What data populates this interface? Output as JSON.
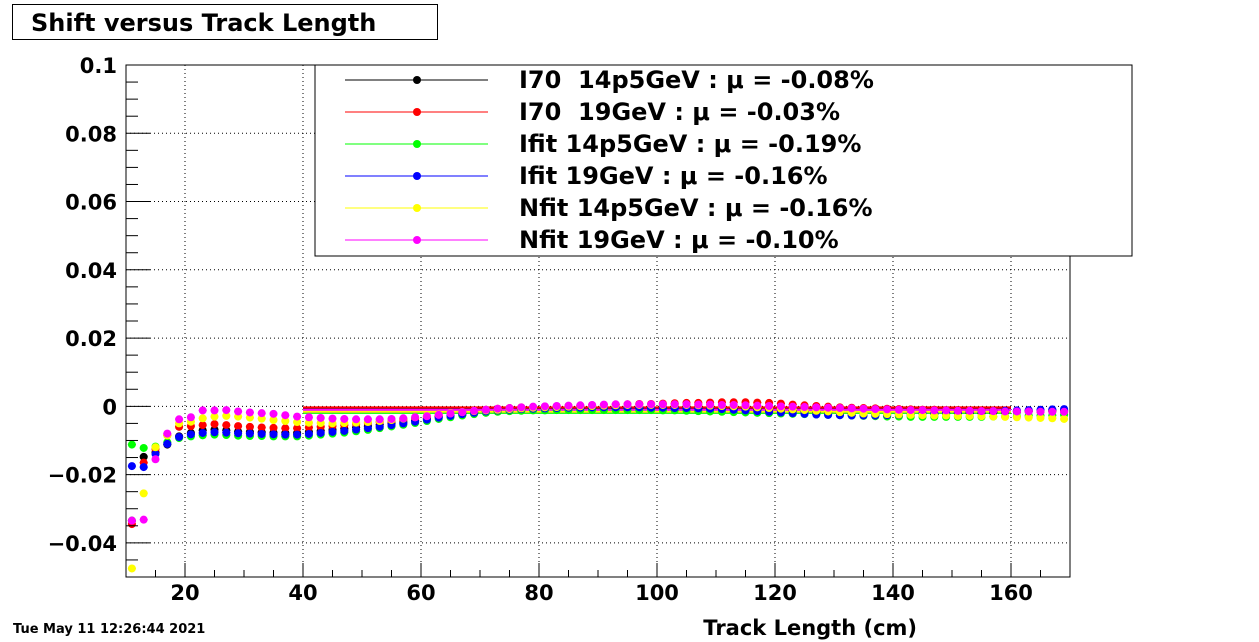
{
  "title": "Shift versus Track Length",
  "timestamp": "Tue May 11 12:26:44 2021",
  "chart_data": {
    "type": "scatter",
    "xlabel": "Track Length (cm)",
    "ylabel": "",
    "xlim": [
      10,
      170
    ],
    "ylim": [
      -0.05,
      0.1
    ],
    "grid": true,
    "legend_position": "top-right",
    "x_ticks": [
      "20",
      "40",
      "60",
      "80",
      "100",
      "120",
      "140",
      "160"
    ],
    "y_ticks": [
      "0.1",
      "0.08",
      "0.06",
      "0.04",
      "0.02",
      "0",
      "−0.02",
      "−0.04"
    ],
    "x": [
      11,
      13,
      15,
      17,
      19,
      21,
      23,
      25,
      27,
      29,
      31,
      33,
      35,
      37,
      39,
      41,
      43,
      45,
      47,
      49,
      51,
      53,
      55,
      57,
      59,
      61,
      63,
      65,
      67,
      69,
      71,
      73,
      75,
      77,
      79,
      81,
      83,
      85,
      87,
      89,
      91,
      93,
      95,
      97,
      99,
      101,
      103,
      105,
      107,
      109,
      111,
      113,
      115,
      117,
      119,
      121,
      123,
      125,
      127,
      129,
      131,
      133,
      135,
      137,
      139,
      141,
      143,
      145,
      147,
      149,
      151,
      153,
      155,
      157,
      159,
      161,
      163,
      165,
      167,
      169
    ],
    "series": [
      {
        "name": "I70  14p5GeV : μ = -0.08%",
        "color": "#000000",
        "mean_line": -0.0008,
        "values": [
          -0.0335,
          -0.0148,
          -0.0135,
          -0.0112,
          -0.0088,
          -0.0078,
          -0.007,
          -0.0068,
          -0.007,
          -0.0074,
          -0.0075,
          -0.0076,
          -0.0077,
          -0.0078,
          -0.0078,
          -0.0075,
          -0.0072,
          -0.0069,
          -0.0066,
          -0.0062,
          -0.0058,
          -0.0054,
          -0.005,
          -0.0046,
          -0.0042,
          -0.0036,
          -0.003,
          -0.0026,
          -0.0022,
          -0.0018,
          -0.0015,
          -0.0012,
          -0.001,
          -0.0009,
          -0.0008,
          -0.0007,
          -0.0006,
          -0.0006,
          -0.0005,
          -0.0005,
          -0.0005,
          -0.0005,
          -0.0005,
          -0.0005,
          -0.0005,
          -0.0005,
          -0.0005,
          -0.0005,
          -0.0006,
          -0.0006,
          -0.0006,
          -0.0007,
          -0.0008,
          -0.0009,
          -0.001,
          -0.0011,
          -0.0013,
          -0.0015,
          -0.0017,
          -0.0019,
          -0.0021,
          -0.0022,
          -0.0023,
          -0.0024,
          -0.0025,
          -0.0025,
          -0.0025,
          -0.0024,
          -0.0023,
          -0.0022,
          -0.0021,
          -0.002,
          -0.0019,
          -0.0018,
          -0.0017,
          -0.0016,
          -0.0015,
          -0.0014,
          -0.0013,
          -0.0012
        ]
      },
      {
        "name": "I70  19GeV : μ = -0.03%",
        "color": "#ff0000",
        "mean_line": -0.0003,
        "values": [
          -0.0345,
          -0.0165,
          -0.0125,
          -0.0085,
          -0.006,
          -0.0058,
          -0.0055,
          -0.0052,
          -0.0055,
          -0.0058,
          -0.006,
          -0.0062,
          -0.0063,
          -0.0064,
          -0.0064,
          -0.0062,
          -0.006,
          -0.0058,
          -0.0055,
          -0.0052,
          -0.0049,
          -0.0046,
          -0.0043,
          -0.004,
          -0.0036,
          -0.0032,
          -0.0027,
          -0.0022,
          -0.0018,
          -0.0014,
          -0.001,
          -0.0007,
          -0.0005,
          -0.0003,
          -0.0002,
          -0.0001,
          0.0,
          0.0001,
          0.0002,
          0.0003,
          0.0004,
          0.0005,
          0.0006,
          0.0007,
          0.0007,
          0.0008,
          0.0009,
          0.001,
          0.001,
          0.0011,
          0.0012,
          0.0012,
          0.0012,
          0.0011,
          0.001,
          0.0008,
          0.0005,
          0.0003,
          0.0001,
          -0.0001,
          -0.0003,
          -0.0004,
          -0.0005,
          -0.0006,
          -0.0007,
          -0.0008,
          -0.0009,
          -0.001,
          -0.001,
          -0.0011,
          -0.0011,
          -0.0012,
          -0.0012,
          -0.0013,
          -0.0013,
          -0.0014,
          -0.0014,
          -0.0015,
          -0.0015,
          -0.0016
        ]
      },
      {
        "name": "Ifit 14p5GeV : μ = -0.19%",
        "color": "#00ff00",
        "mean_line": -0.0019,
        "values": [
          -0.0112,
          -0.0122,
          -0.0118,
          -0.0105,
          -0.0093,
          -0.0088,
          -0.0085,
          -0.0083,
          -0.0084,
          -0.0086,
          -0.0087,
          -0.0087,
          -0.0088,
          -0.0088,
          -0.0088,
          -0.0086,
          -0.0083,
          -0.008,
          -0.0077,
          -0.0073,
          -0.0069,
          -0.0064,
          -0.0059,
          -0.0054,
          -0.0049,
          -0.0043,
          -0.0037,
          -0.0032,
          -0.0027,
          -0.0023,
          -0.0019,
          -0.0016,
          -0.0014,
          -0.0013,
          -0.0012,
          -0.0012,
          -0.0011,
          -0.0011,
          -0.0011,
          -0.0011,
          -0.0011,
          -0.0011,
          -0.0011,
          -0.0011,
          -0.0011,
          -0.0012,
          -0.0012,
          -0.0013,
          -0.0014,
          -0.0015,
          -0.0016,
          -0.0017,
          -0.0018,
          -0.0019,
          -0.002,
          -0.0021,
          -0.0022,
          -0.0023,
          -0.0024,
          -0.0025,
          -0.0026,
          -0.0027,
          -0.0028,
          -0.0029,
          -0.003,
          -0.003,
          -0.0031,
          -0.0031,
          -0.0031,
          -0.0031,
          -0.0031,
          -0.0031,
          -0.0031,
          -0.003,
          -0.003,
          -0.0029,
          -0.0028,
          -0.0027,
          -0.0026,
          -0.0025
        ]
      },
      {
        "name": "Ifit 19GeV : μ = -0.16%",
        "color": "#0000ff",
        "mean_line": -0.0016,
        "values": [
          -0.0175,
          -0.0178,
          -0.014,
          -0.011,
          -0.009,
          -0.0082,
          -0.0078,
          -0.0076,
          -0.0077,
          -0.0079,
          -0.008,
          -0.0081,
          -0.0082,
          -0.0083,
          -0.0083,
          -0.0081,
          -0.0078,
          -0.0075,
          -0.0072,
          -0.0068,
          -0.0064,
          -0.006,
          -0.0055,
          -0.005,
          -0.0045,
          -0.0039,
          -0.0033,
          -0.0028,
          -0.0023,
          -0.0019,
          -0.0015,
          -0.0012,
          -0.001,
          -0.0008,
          -0.0007,
          -0.0006,
          -0.0005,
          -0.0004,
          -0.0004,
          -0.0003,
          -0.0003,
          -0.0003,
          -0.0003,
          -0.0003,
          -0.0004,
          -0.0004,
          -0.0005,
          -0.0005,
          -0.0006,
          -0.0007,
          -0.0008,
          -0.001,
          -0.0012,
          -0.0014,
          -0.0016,
          -0.0018,
          -0.002,
          -0.0022,
          -0.0024,
          -0.0025,
          -0.0026,
          -0.0027,
          -0.0027,
          -0.0027,
          -0.0026,
          -0.0025,
          -0.0024,
          -0.0022,
          -0.0021,
          -0.0019,
          -0.0018,
          -0.0016,
          -0.0015,
          -0.0014,
          -0.0013,
          -0.0012,
          -0.0011,
          -0.001,
          -0.0009,
          -0.0008
        ]
      },
      {
        "name": "Nfit 14p5GeV : μ = -0.16%",
        "color": "#ffff00",
        "mean_line": -0.0016,
        "values": [
          -0.0475,
          -0.0255,
          -0.012,
          -0.0085,
          -0.005,
          -0.0045,
          -0.0035,
          -0.003,
          -0.0028,
          -0.003,
          -0.0033,
          -0.0036,
          -0.004,
          -0.0043,
          -0.0046,
          -0.0048,
          -0.0049,
          -0.005,
          -0.0049,
          -0.0048,
          -0.0046,
          -0.0043,
          -0.004,
          -0.0036,
          -0.0032,
          -0.0028,
          -0.0024,
          -0.002,
          -0.0017,
          -0.0014,
          -0.0012,
          -0.001,
          -0.0008,
          -0.0006,
          -0.0004,
          -0.0003,
          -0.0002,
          -0.0001,
          0.0,
          0.0001,
          0.0002,
          0.0003,
          0.0004,
          0.0004,
          0.0004,
          0.0004,
          0.0004,
          0.0004,
          0.0003,
          0.0002,
          0.0001,
          0.0,
          -0.0001,
          -0.0003,
          -0.0005,
          -0.0007,
          -0.0009,
          -0.0011,
          -0.0013,
          -0.0015,
          -0.0017,
          -0.0019,
          -0.0021,
          -0.0022,
          -0.0023,
          -0.0024,
          -0.0025,
          -0.0026,
          -0.0027,
          -0.0027,
          -0.0028,
          -0.0028,
          -0.0029,
          -0.003,
          -0.0031,
          -0.0032,
          -0.0033,
          -0.0034,
          -0.0035,
          -0.0037
        ]
      },
      {
        "name": "Nfit 19GeV : μ = -0.10%",
        "color": "#ff00ff",
        "mean_line": -0.001,
        "values": [
          -0.0335,
          -0.0332,
          -0.0155,
          -0.008,
          -0.0038,
          -0.0032,
          -0.0012,
          -0.0012,
          -0.0011,
          -0.0015,
          -0.0018,
          -0.002,
          -0.0022,
          -0.0026,
          -0.003,
          -0.0032,
          -0.0034,
          -0.0036,
          -0.0037,
          -0.0038,
          -0.0038,
          -0.0038,
          -0.0037,
          -0.0035,
          -0.0032,
          -0.0029,
          -0.0025,
          -0.0021,
          -0.0017,
          -0.0013,
          -0.001,
          -0.0007,
          -0.0005,
          -0.0003,
          -0.0001,
          0.0,
          0.0001,
          0.0002,
          0.0003,
          0.0004,
          0.0005,
          0.0006,
          0.0006,
          0.0006,
          0.0006,
          0.0006,
          0.0006,
          0.0006,
          0.0005,
          0.0005,
          0.0004,
          0.0004,
          0.0003,
          0.0002,
          0.0001,
          0.0,
          -0.0001,
          -0.0002,
          -0.0003,
          -0.0004,
          -0.0005,
          -0.0006,
          -0.0007,
          -0.0008,
          -0.0009,
          -0.001,
          -0.0011,
          -0.0011,
          -0.0012,
          -0.0012,
          -0.0013,
          -0.0013,
          -0.0014,
          -0.0014,
          -0.0015,
          -0.0015,
          -0.0015,
          -0.0016,
          -0.0016,
          -0.0016
        ]
      }
    ]
  }
}
